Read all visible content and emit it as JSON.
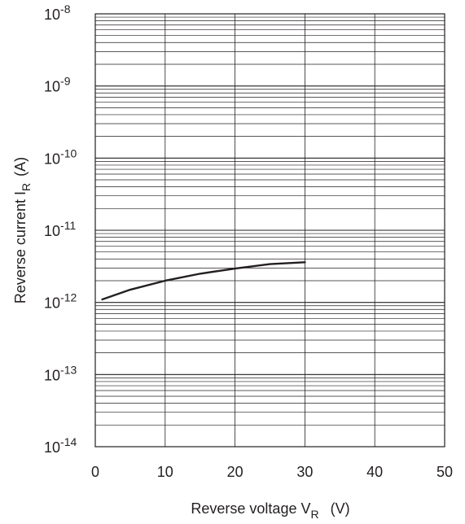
{
  "chart_data": {
    "type": "line",
    "xlabel": "Reverse voltage  V",
    "xlabel_sub": "R",
    "xlabel_unit": "(V)",
    "ylabel": "Reverse current  I",
    "ylabel_sub": "R",
    "ylabel_unit": "(A)",
    "xlim": [
      0,
      50
    ],
    "ylim": [
      1e-14,
      1e-08
    ],
    "yscale": "log",
    "grid": true,
    "x_ticks": [
      "0",
      "10",
      "20",
      "30",
      "40",
      "50"
    ],
    "y_ticks": [
      {
        "base": "10",
        "exp": "-14"
      },
      {
        "base": "10",
        "exp": "-13"
      },
      {
        "base": "10",
        "exp": "-12"
      },
      {
        "base": "10",
        "exp": "-11"
      },
      {
        "base": "10",
        "exp": "-10"
      },
      {
        "base": "10",
        "exp": "-9"
      },
      {
        "base": "10",
        "exp": "-8"
      }
    ],
    "series": [
      {
        "x": [
          1,
          5,
          10,
          15,
          20,
          25,
          30
        ],
        "y": [
          1.1e-12,
          1.5e-12,
          2e-12,
          2.5e-12,
          2.95e-12,
          3.4e-12,
          3.6e-12
        ],
        "color": "#231f20"
      }
    ]
  }
}
